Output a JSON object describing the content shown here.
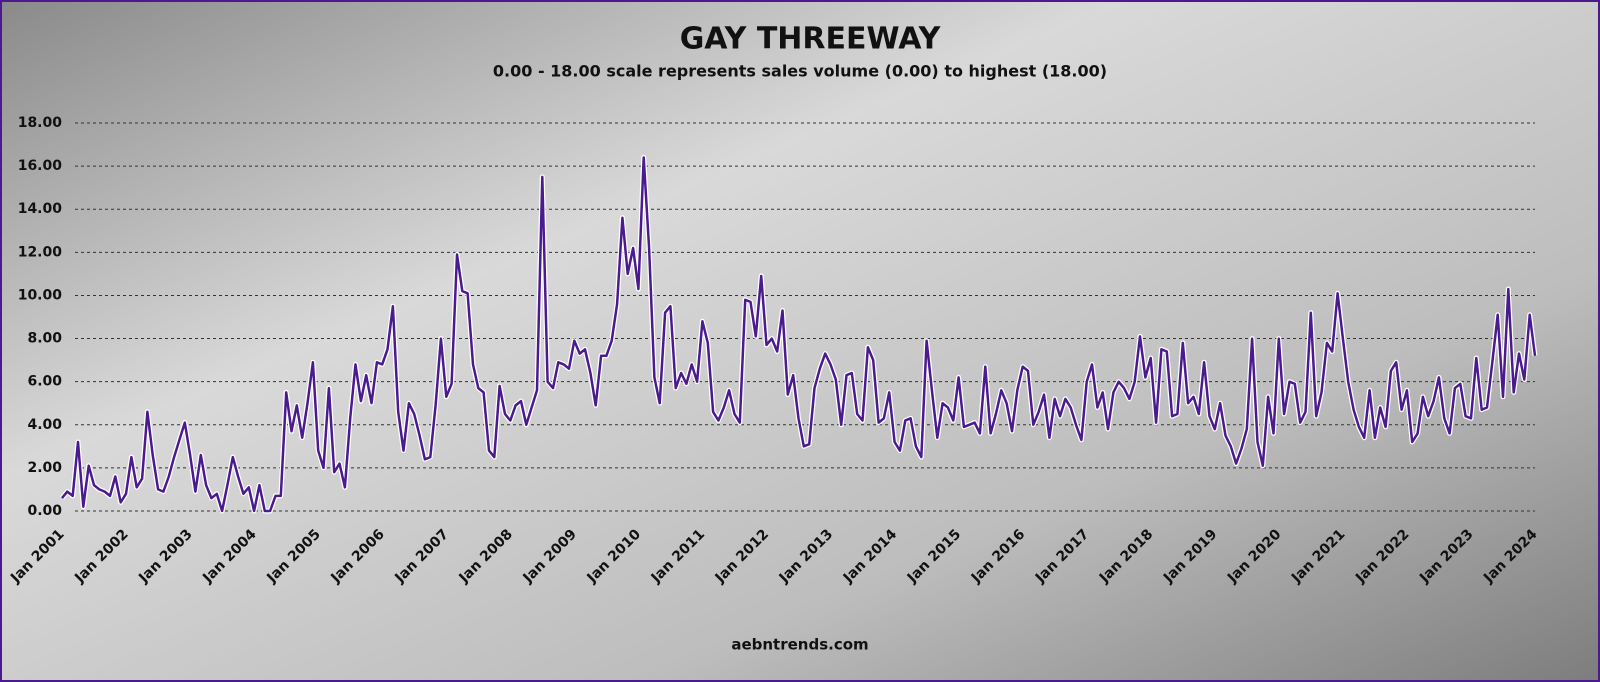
{
  "chart_data": {
    "type": "line",
    "title": "GAY THREEWAY",
    "subtitle": "0.00 - 18.00 scale represents sales volume (0.00) to highest (18.00)",
    "source": "aebntrends.com",
    "grid": true,
    "color": "#4b1a8f",
    "xlim": [
      2001,
      2024
    ],
    "ylim": [
      0,
      18
    ],
    "yticks": [
      {
        "value": 0,
        "label": "0.00"
      },
      {
        "value": 2,
        "label": "2.00"
      },
      {
        "value": 4,
        "label": "4.00"
      },
      {
        "value": 6,
        "label": "6.00"
      },
      {
        "value": 8,
        "label": "8.00"
      },
      {
        "value": 10,
        "label": "10.00"
      },
      {
        "value": 12,
        "label": "12.00"
      },
      {
        "value": 14,
        "label": "14.00"
      },
      {
        "value": 16,
        "label": "16.00"
      },
      {
        "value": 18,
        "label": "18.00"
      }
    ],
    "xticks": [
      {
        "value": 2001,
        "label": "Jan 2001"
      },
      {
        "value": 2002,
        "label": "Jan 2002"
      },
      {
        "value": 2003,
        "label": "Jan 2003"
      },
      {
        "value": 2004,
        "label": "Jan 2004"
      },
      {
        "value": 2005,
        "label": "Jan 2005"
      },
      {
        "value": 2006,
        "label": "Jan 2006"
      },
      {
        "value": 2007,
        "label": "Jan 2007"
      },
      {
        "value": 2008,
        "label": "Jan 2008"
      },
      {
        "value": 2009,
        "label": "Jan 2009"
      },
      {
        "value": 2010,
        "label": "Jan 2010"
      },
      {
        "value": 2011,
        "label": "Jan 2011"
      },
      {
        "value": 2012,
        "label": "Jan 2012"
      },
      {
        "value": 2013,
        "label": "Jan 2013"
      },
      {
        "value": 2014,
        "label": "Jan 2014"
      },
      {
        "value": 2015,
        "label": "Jan 2015"
      },
      {
        "value": 2016,
        "label": "Jan 2016"
      },
      {
        "value": 2017,
        "label": "Jan 2017"
      },
      {
        "value": 2018,
        "label": "Jan 2018"
      },
      {
        "value": 2019,
        "label": "Jan 2019"
      },
      {
        "value": 2020,
        "label": "Jan 2020"
      },
      {
        "value": 2021,
        "label": "Jan 2021"
      },
      {
        "value": 2022,
        "label": "Jan 2022"
      },
      {
        "value": 2023,
        "label": "Jan 2023"
      },
      {
        "value": 2024,
        "label": "Jan 2024"
      }
    ],
    "x": [
      2001.0,
      2001.083,
      2001.167,
      2001.25,
      2001.333,
      2001.417,
      2001.5,
      2001.583,
      2001.667,
      2001.75,
      2001.833,
      2001.917,
      2002.0,
      2002.083,
      2002.167,
      2002.25,
      2002.333,
      2002.417,
      2002.5,
      2002.583,
      2002.667,
      2002.75,
      2002.833,
      2002.917,
      2003.0,
      2003.083,
      2003.167,
      2003.25,
      2003.333,
      2003.417,
      2003.5,
      2003.583,
      2003.667,
      2003.75,
      2003.833,
      2003.917,
      2004.0,
      2004.083,
      2004.167,
      2004.25,
      2004.333,
      2004.417,
      2004.5,
      2004.583,
      2004.667,
      2004.75,
      2004.833,
      2004.917,
      2005.0,
      2005.083,
      2005.167,
      2005.25,
      2005.333,
      2005.417,
      2005.5,
      2005.583,
      2005.667,
      2005.75,
      2005.833,
      2005.917,
      2006.0,
      2006.083,
      2006.167,
      2006.25,
      2006.333,
      2006.417,
      2006.5,
      2006.583,
      2006.667,
      2006.75,
      2006.833,
      2006.917,
      2007.0,
      2007.083,
      2007.167,
      2007.25,
      2007.333,
      2007.417,
      2007.5,
      2007.583,
      2007.667,
      2007.75,
      2007.833,
      2007.917,
      2008.0,
      2008.083,
      2008.167,
      2008.25,
      2008.333,
      2008.417,
      2008.5,
      2008.583,
      2008.667,
      2008.75,
      2008.833,
      2008.917,
      2009.0,
      2009.083,
      2009.167,
      2009.25,
      2009.333,
      2009.417,
      2009.5,
      2009.583,
      2009.667,
      2009.75,
      2009.833,
      2009.917,
      2010.0,
      2010.083,
      2010.167,
      2010.25,
      2010.333,
      2010.417,
      2010.5,
      2010.583,
      2010.667,
      2010.75,
      2010.833,
      2010.917,
      2011.0,
      2011.083,
      2011.167,
      2011.25,
      2011.333,
      2011.417,
      2011.5,
      2011.583,
      2011.667,
      2011.75,
      2011.833,
      2011.917,
      2012.0,
      2012.083,
      2012.167,
      2012.25,
      2012.333,
      2012.417,
      2012.5,
      2012.583,
      2012.667,
      2012.75,
      2012.833,
      2012.917,
      2013.0,
      2013.083,
      2013.167,
      2013.25,
      2013.333,
      2013.417,
      2013.5,
      2013.583,
      2013.667,
      2013.75,
      2013.833,
      2013.917,
      2014.0,
      2014.083,
      2014.167,
      2014.25,
      2014.333,
      2014.417,
      2014.5,
      2014.583,
      2014.667,
      2014.75,
      2014.833,
      2014.917,
      2015.0,
      2015.083,
      2015.167,
      2015.25,
      2015.333,
      2015.417,
      2015.5,
      2015.583,
      2015.667,
      2015.75,
      2015.833,
      2015.917,
      2016.0,
      2016.083,
      2016.167,
      2016.25,
      2016.333,
      2016.417,
      2016.5,
      2016.583,
      2016.667,
      2016.75,
      2016.833,
      2016.917,
      2017.0,
      2017.083,
      2017.167,
      2017.25,
      2017.333,
      2017.417,
      2017.5,
      2017.583,
      2017.667,
      2017.75,
      2017.833,
      2017.917,
      2018.0,
      2018.083,
      2018.167,
      2018.25,
      2018.333,
      2018.417,
      2018.5,
      2018.583,
      2018.667,
      2018.75,
      2018.833,
      2018.917,
      2019.0,
      2019.083,
      2019.167,
      2019.25,
      2019.333,
      2019.417,
      2019.5,
      2019.583,
      2019.667,
      2019.75,
      2019.833,
      2019.917,
      2020.0,
      2020.083,
      2020.167,
      2020.25,
      2020.333,
      2020.417,
      2020.5,
      2020.583,
      2020.667,
      2020.75,
      2020.833,
      2020.917,
      2021.0,
      2021.083,
      2021.167,
      2021.25,
      2021.333,
      2021.417,
      2021.5,
      2021.583,
      2021.667,
      2021.75,
      2021.833,
      2021.917,
      2022.0,
      2022.083,
      2022.167,
      2022.25,
      2022.333,
      2022.417,
      2022.5,
      2022.583,
      2022.667,
      2022.75,
      2022.833,
      2022.917,
      2023.0,
      2023.083,
      2023.167,
      2023.25,
      2023.333,
      2023.417,
      2023.5,
      2023.583,
      2023.667,
      2023.75,
      2023.833,
      2023.917,
      2024.0
    ],
    "values": [
      0.6,
      0.9,
      0.7,
      3.2,
      0.2,
      2.1,
      1.2,
      1.0,
      0.9,
      0.7,
      1.6,
      0.4,
      0.8,
      2.5,
      1.1,
      1.5,
      4.6,
      2.6,
      1.0,
      0.9,
      1.6,
      2.5,
      3.3,
      4.1,
      2.6,
      0.9,
      2.6,
      1.2,
      0.6,
      0.8,
      0,
      1.2,
      2.5,
      1.6,
      0.8,
      1.1,
      0,
      1.2,
      0,
      0,
      0.7,
      0.7,
      5.5,
      3.7,
      4.9,
      3.4,
      5.0,
      6.9,
      2.8,
      2.0,
      5.7,
      1.8,
      2.2,
      1.1,
      4.3,
      6.8,
      5.1,
      6.3,
      5.0,
      6.9,
      6.8,
      7.5,
      9.5,
      4.6,
      2.8,
      5.0,
      4.5,
      3.5,
      2.4,
      2.5,
      4.9,
      8.0,
      5.3,
      5.9,
      11.9,
      10.2,
      10.1,
      6.8,
      5.7,
      5.5,
      2.8,
      2.5,
      5.8,
      4.5,
      4.2,
      4.9,
      5.1,
      4.0,
      4.8,
      5.6,
      15.5,
      6.0,
      5.7,
      6.9,
      6.8,
      6.6,
      7.9,
      7.3,
      7.5,
      6.4,
      4.9,
      7.2,
      7.2,
      7.9,
      9.6,
      13.6,
      11.0,
      12.2,
      10.3,
      16.4,
      12.2,
      6.2,
      5.0,
      9.2,
      9.5,
      5.7,
      6.4,
      5.9,
      6.8,
      6.0,
      8.8,
      7.8,
      4.6,
      4.2,
      4.8,
      5.6,
      4.5,
      4.1,
      9.8,
      9.7,
      8.1,
      10.9,
      7.7,
      8.0,
      7.4,
      9.3,
      5.4,
      6.3,
      4.3,
      3.0,
      3.1,
      5.7,
      6.6,
      7.3,
      6.8,
      6.1,
      4.0,
      6.3,
      6.4,
      4.5,
      4.2,
      7.6,
      7.0,
      4.1,
      4.3,
      5.5,
      3.2,
      2.8,
      4.2,
      4.3,
      3.0,
      2.5,
      7.9,
      5.6,
      3.4,
      5.0,
      4.8,
      4.2,
      6.2,
      3.9,
      4.0,
      4.1,
      3.6,
      6.7,
      3.6,
      4.5,
      5.6,
      5.0,
      3.7,
      5.6,
      6.7,
      6.5,
      4.0,
      4.6,
      5.4,
      3.4,
      5.2,
      4.4,
      5.2,
      4.8,
      4.0,
      3.3,
      6.0,
      6.8,
      4.8,
      5.5,
      3.8,
      5.5,
      6.0,
      5.7,
      5.2,
      6.0,
      8.1,
      6.2,
      7.1,
      4.1,
      7.5,
      7.4,
      4.4,
      4.5,
      7.8,
      5.0,
      5.3,
      4.5,
      6.9,
      4.4,
      3.8,
      5.0,
      3.5,
      3.0,
      2.2,
      2.9,
      3.8,
      8.0,
      3.2,
      2.1,
      5.3,
      3.6,
      8.0,
      4.5,
      6.0,
      5.9,
      4.1,
      4.6,
      9.2,
      4.4,
      5.5,
      7.8,
      7.4,
      10.1,
      8.0,
      6.0,
      4.7,
      3.9,
      3.4,
      5.6,
      3.4,
      4.8,
      3.9,
      6.5,
      6.9,
      4.7,
      5.6,
      3.2,
      3.6,
      5.3,
      4.4,
      5.1,
      6.2,
      4.3,
      3.6,
      5.7,
      5.9,
      4.4,
      4.3,
      7.1,
      4.7,
      4.8,
      6.9,
      9.1,
      5.3,
      10.3,
      5.5,
      7.3,
      6.1,
      9.1,
      7.2
    ]
  }
}
